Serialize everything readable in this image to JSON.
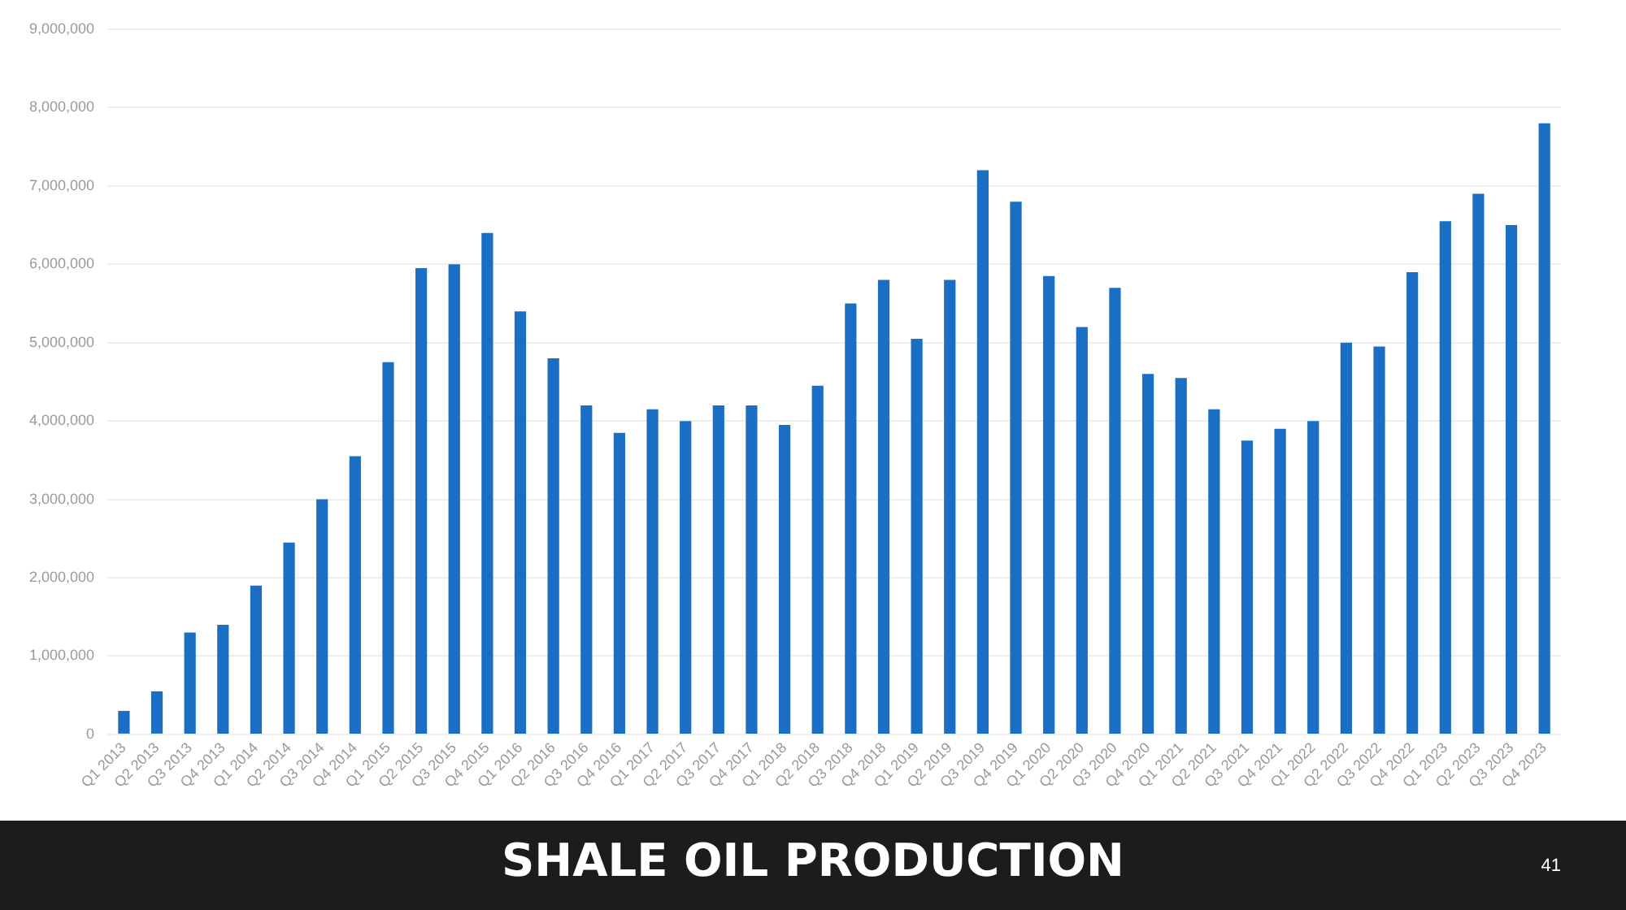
{
  "chart_data": {
    "type": "bar",
    "title": "SHALE OIL PRODUCTION",
    "annotations": [
      "41"
    ],
    "categories": [
      "Q1 2013",
      "Q2 2013",
      "Q3 2013",
      "Q4 2013",
      "Q1 2014",
      "Q2 2014",
      "Q3 2014",
      "Q4 2014",
      "Q1 2015",
      "Q2 2015",
      "Q3 2015",
      "Q4 2015",
      "Q1 2016",
      "Q2 2016",
      "Q3 2016",
      "Q4 2016",
      "Q1 2017",
      "Q2 2017",
      "Q3 2017",
      "Q4 2017",
      "Q1 2018",
      "Q2 2018",
      "Q3 2018",
      "Q4 2018",
      "Q1 2019",
      "Q2 2019",
      "Q3 2019",
      "Q4 2019",
      "Q1 2020",
      "Q2 2020",
      "Q3 2020",
      "Q4 2020",
      "Q1 2021",
      "Q2 2021",
      "Q3 2021",
      "Q4 2021",
      "Q1 2022",
      "Q2 2022",
      "Q3 2022",
      "Q4 2022",
      "Q1 2023",
      "Q2 2023",
      "Q3 2023",
      "Q4 2023"
    ],
    "values": [
      300000,
      550000,
      1300000,
      1400000,
      1900000,
      2450000,
      3000000,
      3550000,
      4750000,
      5950000,
      6000000,
      6400000,
      5400000,
      4800000,
      4200000,
      3850000,
      4150000,
      4000000,
      4200000,
      4200000,
      3950000,
      4450000,
      5500000,
      5800000,
      5050000,
      5800000,
      7200000,
      6800000,
      5850000,
      5200000,
      5700000,
      4600000,
      4550000,
      4150000,
      3750000,
      3900000,
      4000000,
      5000000,
      4950000,
      5900000,
      6550000,
      6900000,
      6500000,
      7800000
    ],
    "color": "#1a6fc4",
    "ylim": [
      0,
      9000000
    ],
    "yticks": [
      0,
      {
        "value": 1000000,
        "label": "1,000,000"
      },
      {
        "value": 2000000,
        "label": "2,000,000"
      },
      {
        "value": 3000000,
        "label": "3,000,000"
      },
      {
        "value": 4000000,
        "label": "4,000,000"
      },
      {
        "value": 5000000,
        "label": "5,000,000"
      },
      {
        "value": 6000000,
        "label": "6,000,000"
      },
      {
        "value": 7000000,
        "label": "7,000,000"
      },
      {
        "value": 8000000,
        "label": "8,000,000"
      },
      {
        "value": 9000000,
        "label": "9,000,000"
      }
    ],
    "grid": "y",
    "legend": false
  }
}
